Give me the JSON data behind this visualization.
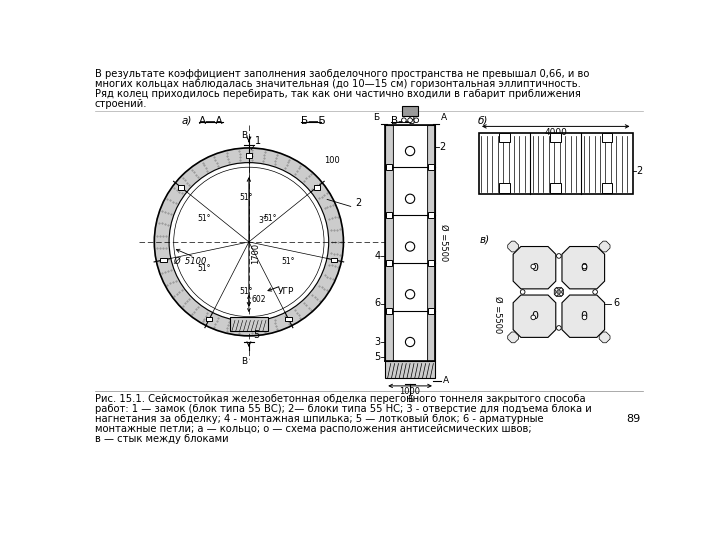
{
  "top_text": "В результате коэффициент заполнения заобделочного пространства не превышал 0,66, и во\nмногих кольцах наблюдалась значительная (до 10—15 см) горизонтальная эллиптичность.\nРяд колец приходилось перебирать, так как они частично входили в габарит приближения\nстроений.",
  "caption_line1": "Рис. 15.1. Сейсмостойкая железобетонная обделка перегонного тоннеля закрытого способа",
  "caption_line2": "работ: 1 — замок (блок типа 55 ВС); 2— блоки типа 55 НС; 3 - отверстие для подъема блока и",
  "caption_line3": "нагнетания за обделку; 4 - монтажная шпилька; 5 — лотковый блок; 6 - арматурные",
  "caption_line4": "монтажные петли; а — кольцо; о — схема расположения антисейсмических швов;",
  "caption_line5": "в — стык между блоками",
  "page_number": "89",
  "bg_color": "#ffffff",
  "dc": "#000000",
  "gray_fill": "#cccccc",
  "gray_dark": "#999999",
  "gray_light": "#e8e8e8",
  "label_a": "а)",
  "label_b": "б)",
  "label_v": "в)",
  "label_AA": "А—А",
  "label_BB": "Б—Б",
  "label_VV": "В—В",
  "dim_4000": "4000",
  "dim_1000": "1000",
  "dim_1700": "1700",
  "dim_602": "602",
  "dim_100": "100",
  "dim_phi5100": "Ø  5100",
  "dim_phi5500": "Ø =5500",
  "label_ugr": "УГР",
  "angle_51": "51°",
  "angle_3": "3°"
}
